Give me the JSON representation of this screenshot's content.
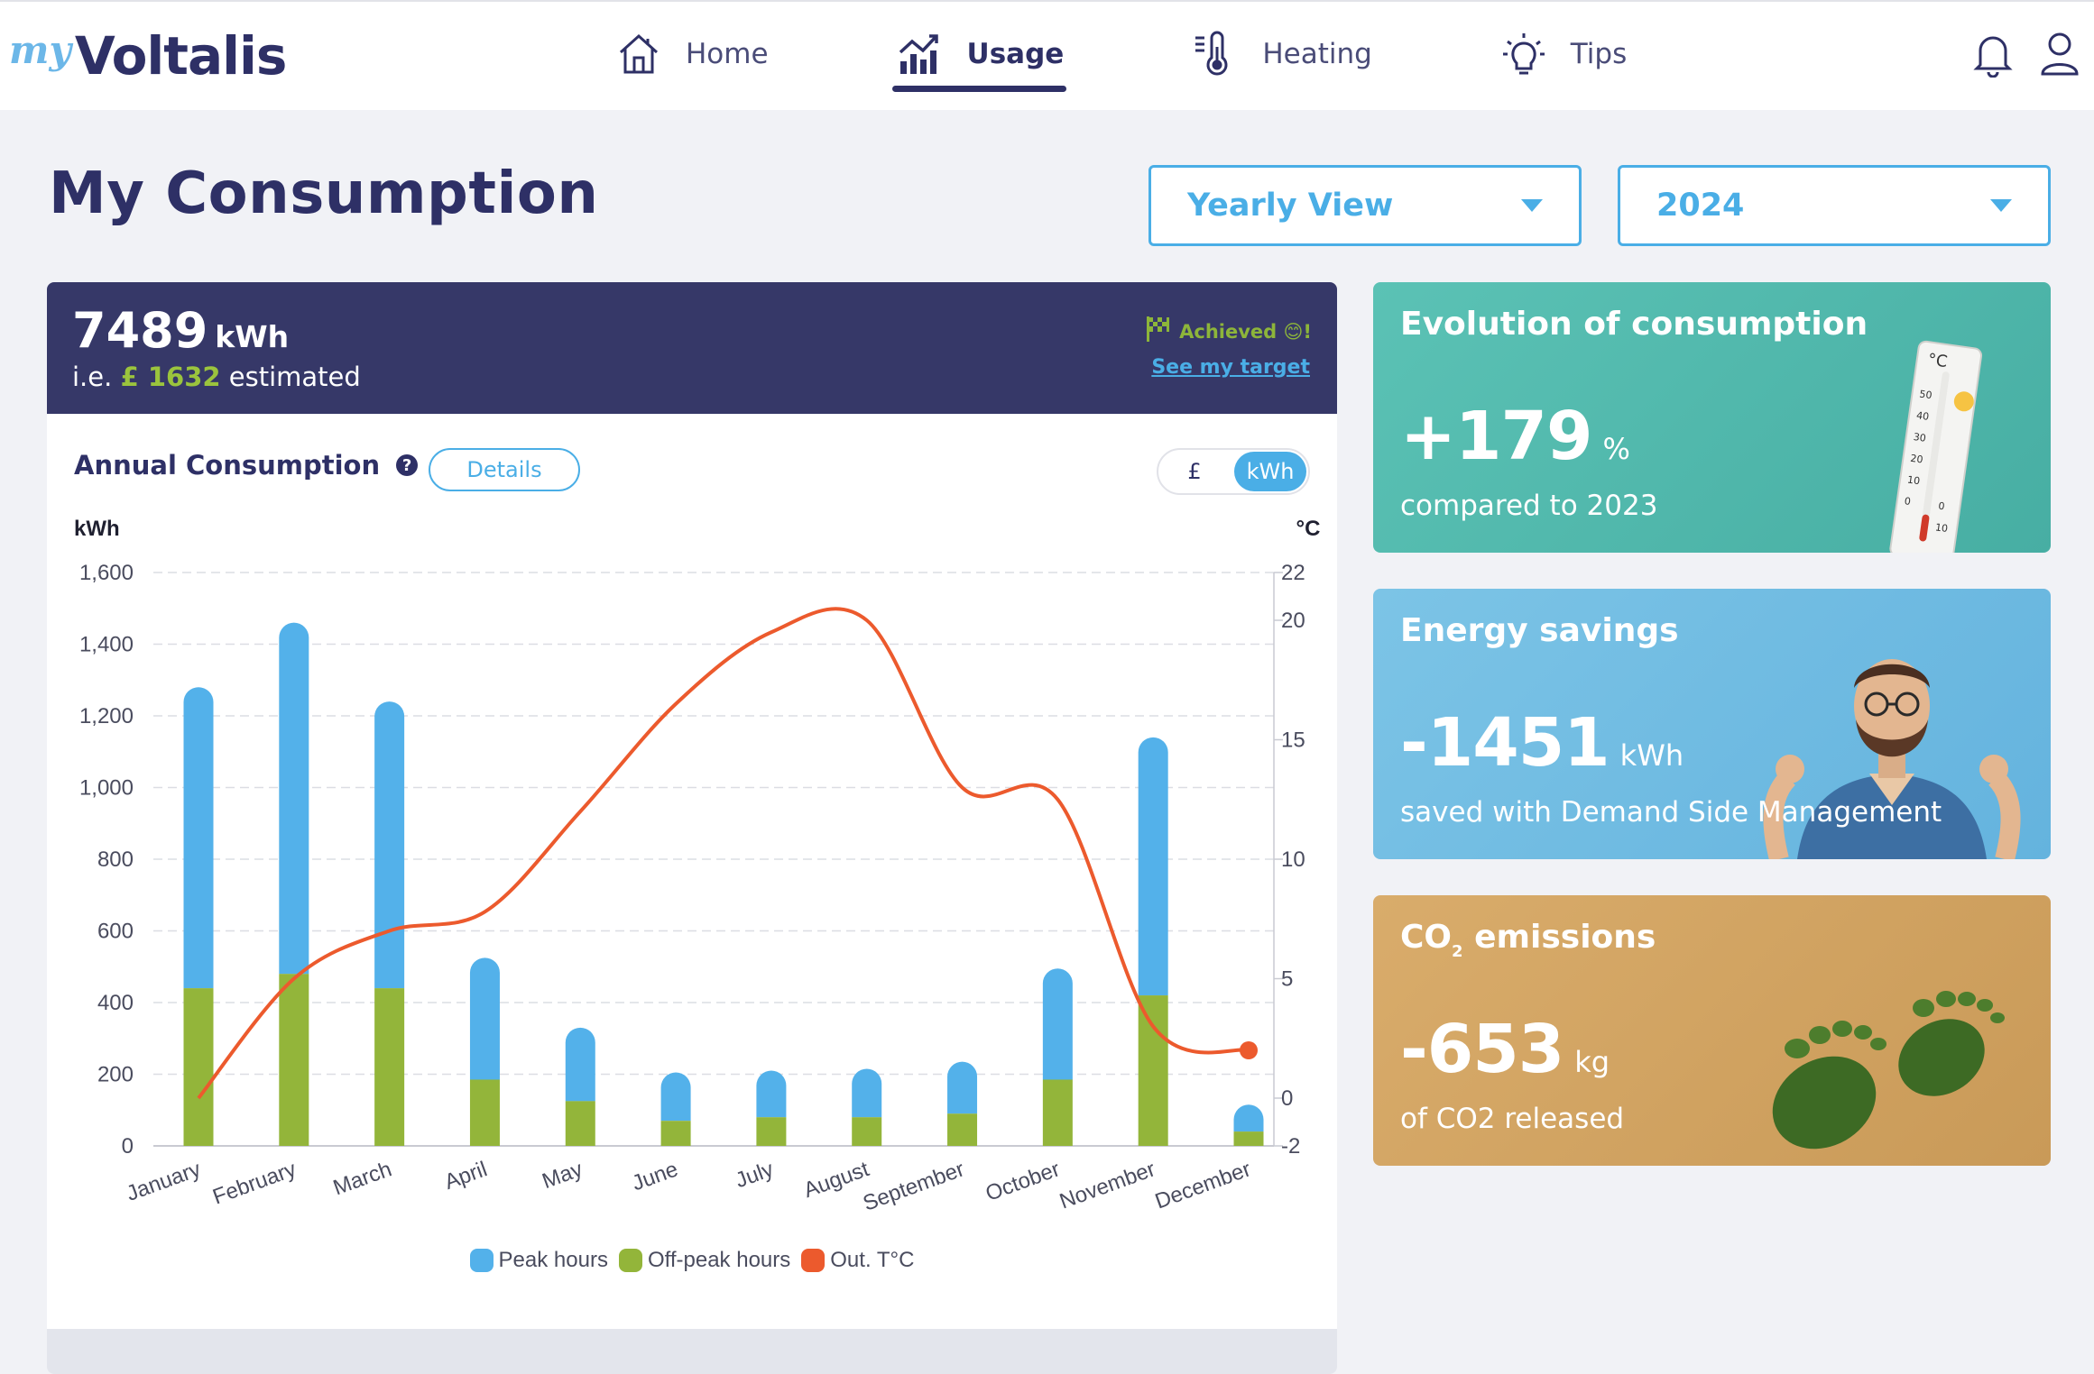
{
  "app": {
    "logo_prefix": "my",
    "logo_name": "Voltalis"
  },
  "nav": [
    {
      "label": "Home",
      "icon": "home-icon",
      "active": false
    },
    {
      "label": "Usage",
      "icon": "chart-icon",
      "active": true
    },
    {
      "label": "Heating",
      "icon": "thermometer-icon",
      "active": false
    },
    {
      "label": "Tips",
      "icon": "lightbulb-icon",
      "active": false
    }
  ],
  "header_icons": [
    "bell-icon",
    "user-icon"
  ],
  "page": {
    "title": "My Consumption",
    "view_select": "Yearly View",
    "year_select": "2024"
  },
  "summary": {
    "total_value": "7489",
    "total_unit": "kWh",
    "estimate_prefix": "i.e.",
    "estimate_amount": "£ 1632",
    "estimate_suffix": "estimated",
    "achieved_label": "Achieved 😊!",
    "target_link": "See my target"
  },
  "annual": {
    "title": "Annual Consumption",
    "help": "?",
    "details_button": "Details",
    "unit_options": [
      "£",
      "kWh"
    ],
    "unit_selected": "kWh"
  },
  "chart_data": {
    "type": "bar",
    "stacked": true,
    "categories": [
      "January",
      "February",
      "March",
      "April",
      "May",
      "June",
      "July",
      "August",
      "September",
      "October",
      "November",
      "December"
    ],
    "series": [
      {
        "name": "Off-peak hours",
        "color": "#93b53a",
        "values": [
          440,
          480,
          440,
          185,
          125,
          70,
          80,
          80,
          90,
          185,
          420,
          40
        ]
      },
      {
        "name": "Peak hours",
        "color": "#53b1ea",
        "values": [
          840,
          980,
          800,
          340,
          205,
          135,
          130,
          135,
          145,
          310,
          720,
          75
        ]
      }
    ],
    "line_series": {
      "name": "Out. T°C",
      "color": "#ec5a2d",
      "axis": "right",
      "values": [
        0,
        5,
        7,
        7.8,
        12,
        16.5,
        19.5,
        20,
        13,
        12.5,
        3,
        2
      ]
    },
    "ylabel": "kWh",
    "y2label": "°C",
    "ylim": [
      0,
      1600
    ],
    "yticks": [
      "0",
      "200",
      "400",
      "600",
      "800",
      "1,000",
      "1,200",
      "1,400",
      "1,600"
    ],
    "y2lim": [
      -2,
      22
    ],
    "y2ticks": [
      "-2",
      "0",
      "5",
      "10",
      "15",
      "20",
      "22"
    ],
    "grid": true,
    "legend_position": "bottom"
  },
  "cards": {
    "evolution": {
      "title": "Evolution of consumption",
      "value": "+179",
      "unit": "%",
      "caption": "compared to 2023"
    },
    "energy": {
      "title": "Energy savings",
      "value": "-1451",
      "unit": "kWh",
      "caption": "saved with Demand Side Management"
    },
    "co2": {
      "title_main": "CO",
      "title_sub": "2",
      "title_rest": " emissions",
      "value": "-653",
      "unit": "kg",
      "caption": "of CO2 released"
    }
  },
  "thermo_labels": [
    "°C",
    "50",
    "40",
    "30",
    "20",
    "10",
    "0",
    "0",
    "10"
  ]
}
